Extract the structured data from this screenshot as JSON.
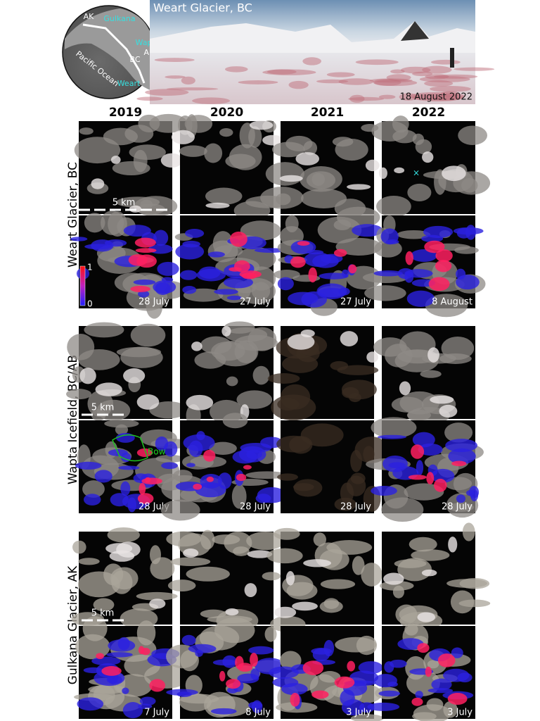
{
  "inset_map": {
    "labels": [
      "AK",
      "Gulkana",
      "Wapta",
      "AB",
      "BC",
      "Pacific Ocean",
      "Weart"
    ]
  },
  "photo": {
    "title": "Weart Glacier, BC",
    "date": "18 August 2022"
  },
  "columns": [
    "2019",
    "2020",
    "2021",
    "2022"
  ],
  "sites": [
    {
      "name": "Weart Glacier, BC",
      "scale": "5 km",
      "dates": [
        "28 July",
        "27 July",
        "27 July",
        "8 August"
      ],
      "colorbar": {
        "max": 1,
        "min": 0
      }
    },
    {
      "name": "Wapta Icefield, BC/AB",
      "scale": "5 km",
      "dates": [
        "28 July",
        "28 July",
        "28 July",
        "28 July"
      ],
      "annotation": "Bow"
    },
    {
      "name": "Gulkana Glacier, AK",
      "scale": "5 km",
      "dates": [
        "7 July",
        "8 July",
        "3 July",
        "3 July"
      ]
    }
  ]
}
